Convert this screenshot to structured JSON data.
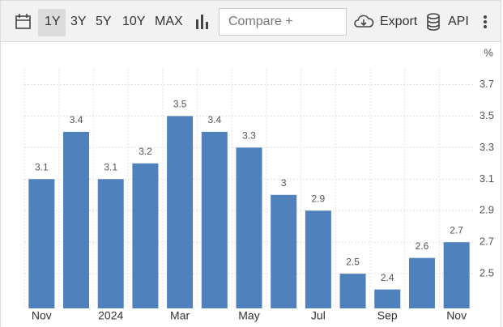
{
  "toolbar": {
    "ranges": [
      "1Y",
      "3Y",
      "5Y",
      "10Y",
      "MAX"
    ],
    "compare": "Compare +",
    "export": "Export",
    "api": "API"
  },
  "chart_data": {
    "type": "bar",
    "y_unit": "%",
    "categories": [
      "Nov",
      null,
      "2024",
      null,
      "Mar",
      null,
      "May",
      null,
      "Jul",
      null,
      "Sep",
      null,
      "Nov"
    ],
    "values": [
      3.1,
      3.4,
      3.1,
      3.2,
      3.5,
      3.4,
      3.3,
      3,
      2.9,
      2.5,
      2.4,
      2.6,
      2.7
    ],
    "color": "#4f81bd",
    "ylim": [
      2.28,
      3.8
    ],
    "yticks": [
      2.5,
      2.7,
      2.9,
      3.1,
      3.3,
      3.5,
      3.7
    ],
    "grid": true
  }
}
